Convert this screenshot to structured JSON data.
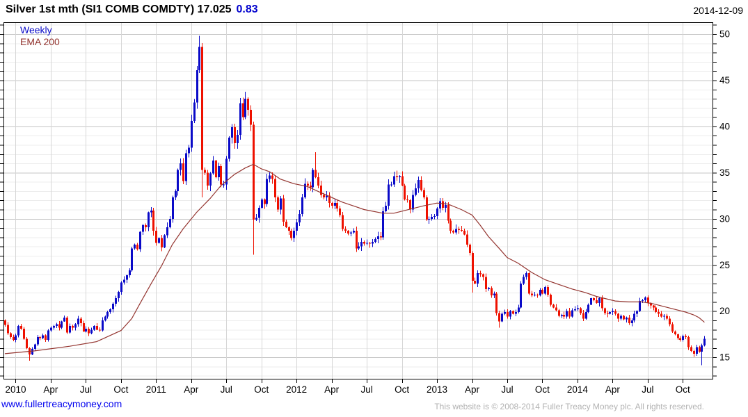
{
  "header": {
    "title": "Silver 1st mth (SI1 COMB COMDTY) 17.025",
    "change": "0.83",
    "date": "2014-12-09"
  },
  "legend": {
    "series": "Weekly",
    "overlay": "EMA 200"
  },
  "footer": {
    "link": "www.fullertreacymoney.com",
    "copyright": "This website is © 2008-2014 Fuller Treacy Money plc. All rights reserved."
  },
  "colors": {
    "up": "#0a0ac8",
    "down": "#ee1100",
    "ema": "#943530",
    "change": "#0000cd",
    "link": "#0000ee",
    "copyright": "#b2b2b2",
    "grid_minor": "#ececec",
    "grid_major": "#c5c5c5",
    "grid_vert": "#d6d6d6",
    "frame": "#000000",
    "label": "#000000"
  },
  "chart_data": {
    "type": "candlestick",
    "timeframe": "Weekly",
    "title": "Silver 1st mth (SI1 COMB COMDTY)",
    "last_price": 17.025,
    "change": 0.83,
    "date": "2014-12-09",
    "y_range": [
      12.68,
      51.28
    ],
    "y_ticks": [
      15,
      20,
      25,
      30,
      35,
      40,
      45,
      50
    ],
    "grid": "minor 1.0 / major 5.0",
    "legend_position": "top-left",
    "x_ticks": [
      {
        "week": 4,
        "label": "2010"
      },
      {
        "week": 17,
        "label": "Apr"
      },
      {
        "week": 30,
        "label": "Jul"
      },
      {
        "week": 43,
        "label": "Oct"
      },
      {
        "week": 56,
        "label": "2011"
      },
      {
        "week": 69,
        "label": "Apr"
      },
      {
        "week": 82,
        "label": "Jul"
      },
      {
        "week": 95,
        "label": "Oct"
      },
      {
        "week": 108,
        "label": "2012"
      },
      {
        "week": 121,
        "label": "Apr"
      },
      {
        "week": 134,
        "label": "Jul"
      },
      {
        "week": 147,
        "label": "Oct"
      },
      {
        "week": 160,
        "label": "2013"
      },
      {
        "week": 173,
        "label": "Apr"
      },
      {
        "week": 186,
        "label": "Jul"
      },
      {
        "week": 199,
        "label": "Oct"
      },
      {
        "week": 212,
        "label": "2014"
      },
      {
        "week": 225,
        "label": "Apr"
      },
      {
        "week": 238,
        "label": "Jul"
      },
      {
        "week": 251,
        "label": "Oct"
      }
    ],
    "first_open": 19.0,
    "weekly_closes": [
      18.5,
      17.6,
      17.2,
      16.9,
      17.4,
      18.4,
      18.1,
      17.0,
      16.0,
      15.3,
      15.9,
      16.4,
      17.2,
      17.1,
      17.4,
      16.9,
      17.9,
      18.2,
      18.4,
      18.6,
      18.2,
      18.9,
      19.3,
      17.7,
      18.4,
      18.2,
      18.6,
      19.2,
      18.7,
      17.8,
      18.1,
      17.6,
      18.0,
      18.4,
      18.0,
      17.9,
      19.0,
      19.4,
      19.9,
      20.2,
      20.8,
      21.4,
      22.1,
      23.1,
      23.4,
      23.9,
      24.4,
      26.8,
      27.2,
      26.7,
      28.6,
      29.3,
      29.1,
      30.7,
      30.9,
      28.7,
      27.4,
      27.9,
      26.9,
      28.2,
      29.1,
      30.0,
      32.3,
      33.0,
      35.3,
      36.0,
      34.1,
      37.1,
      37.7,
      40.6,
      42.6,
      46.1,
      48.6,
      35.3,
      35.0,
      33.6,
      34.9,
      36.3,
      34.5,
      35.7,
      33.7,
      33.7,
      36.5,
      38.8,
      39.9,
      38.2,
      39.1,
      42.5,
      41.0,
      43.0,
      41.8,
      40.2,
      29.9,
      30.1,
      31.2,
      32.1,
      31.6,
      34.3,
      34.7,
      34.3,
      32.3,
      31.0,
      32.2,
      29.7,
      29.1,
      28.7,
      27.9,
      28.7,
      29.6,
      30.5,
      32.3,
      33.8,
      33.6,
      33.4,
      35.3,
      34.5,
      33.6,
      32.6,
      32.3,
      32.5,
      31.7,
      31.4,
      31.7,
      31.1,
      30.4,
      28.9,
      28.7,
      28.4,
      28.5,
      28.7,
      26.8,
      27.0,
      27.5,
      27.3,
      27.4,
      27.3,
      27.5,
      27.8,
      28.1,
      28.0,
      30.8,
      31.4,
      33.7,
      33.7,
      34.6,
      34.5,
      34.6,
      33.6,
      32.1,
      32.0,
      31.0,
      32.6,
      33.3,
      34.2,
      33.1,
      32.3,
      29.9,
      30.0,
      30.2,
      30.3,
      31.1,
      31.9,
      31.2,
      31.5,
      29.8,
      28.7,
      28.5,
      28.9,
      28.8,
      28.7,
      28.3,
      27.2,
      26.3,
      23.3,
      23.0,
      24.1,
      24.0,
      23.7,
      22.4,
      22.5,
      21.7,
      21.9,
      19.8,
      18.9,
      19.7,
      19.9,
      19.4,
      20.0,
      19.7,
      19.9,
      20.4,
      23.0,
      23.7,
      24.1,
      21.9,
      21.7,
      21.8,
      21.7,
      22.3,
      21.9,
      22.6,
      21.8,
      20.7,
      20.4,
      20.1,
      19.5,
      19.6,
      19.4,
      20.0,
      19.4,
      20.1,
      20.2,
      20.3,
      19.8,
      19.2,
      19.9,
      20.7,
      21.4,
      21.2,
      20.9,
      21.4,
      20.3,
      19.8,
      19.7,
      19.9,
      20.0,
      19.7,
      19.2,
      19.5,
      19.1,
      19.3,
      18.7,
      19.0,
      19.7,
      20.0,
      21.1,
      21.2,
      21.5,
      20.9,
      20.6,
      20.4,
      19.9,
      19.7,
      19.4,
      19.5,
      19.2,
      18.6,
      17.8,
      17.5,
      17.1,
      16.9,
      17.3,
      17.2,
      16.1,
      15.7,
      15.4,
      16.1,
      15.6,
      16.3,
      17.025
    ],
    "wick_overrides": {
      "9": {
        "low": 14.65
      },
      "72": {
        "high": 49.83
      },
      "73": {
        "low": 32.3
      },
      "92": {
        "low": 26.1
      },
      "115": {
        "high": 37.2
      },
      "173": {
        "low": 22.0
      },
      "183": {
        "low": 18.2
      },
      "237": {
        "high": 21.6
      },
      "255": {
        "low": 15.05
      },
      "258": {
        "low": 14.15
      },
      "259": {
        "high": 17.3
      }
    },
    "ema200": {
      "label": "EMA 200",
      "points": [
        [
          0,
          15.4
        ],
        [
          11,
          15.7
        ],
        [
          24,
          16.2
        ],
        [
          34,
          16.7
        ],
        [
          43,
          17.9
        ],
        [
          47,
          19.2
        ],
        [
          50,
          20.8
        ],
        [
          54,
          22.9
        ],
        [
          58,
          24.9
        ],
        [
          62,
          27.2
        ],
        [
          66,
          28.9
        ],
        [
          71,
          30.7
        ],
        [
          76,
          32.2
        ],
        [
          80,
          33.6
        ],
        [
          85,
          34.8
        ],
        [
          89,
          35.5
        ],
        [
          92,
          35.9
        ],
        [
          95,
          35.4
        ],
        [
          98,
          35.1
        ],
        [
          102,
          34.3
        ],
        [
          107,
          33.8
        ],
        [
          112,
          33.5
        ],
        [
          118,
          32.7
        ],
        [
          125,
          31.8
        ],
        [
          133,
          31.0
        ],
        [
          140,
          30.6
        ],
        [
          144,
          30.6
        ],
        [
          148,
          30.9
        ],
        [
          155,
          31.4
        ],
        [
          160,
          31.7
        ],
        [
          164,
          31.6
        ],
        [
          169,
          31.0
        ],
        [
          173,
          30.4
        ],
        [
          176,
          29.3
        ],
        [
          179,
          28.1
        ],
        [
          183,
          26.8
        ],
        [
          186,
          25.8
        ],
        [
          190,
          25.2
        ],
        [
          195,
          24.2
        ],
        [
          200,
          23.4
        ],
        [
          205,
          22.9
        ],
        [
          210,
          22.4
        ],
        [
          215,
          22.0
        ],
        [
          219,
          21.6
        ],
        [
          226,
          21.1
        ],
        [
          231,
          21.0
        ],
        [
          236,
          21.0
        ],
        [
          240,
          20.8
        ],
        [
          244,
          20.5
        ],
        [
          248,
          20.2
        ],
        [
          252,
          19.9
        ],
        [
          255,
          19.6
        ],
        [
          257,
          19.3
        ],
        [
          259,
          18.8
        ]
      ]
    }
  }
}
